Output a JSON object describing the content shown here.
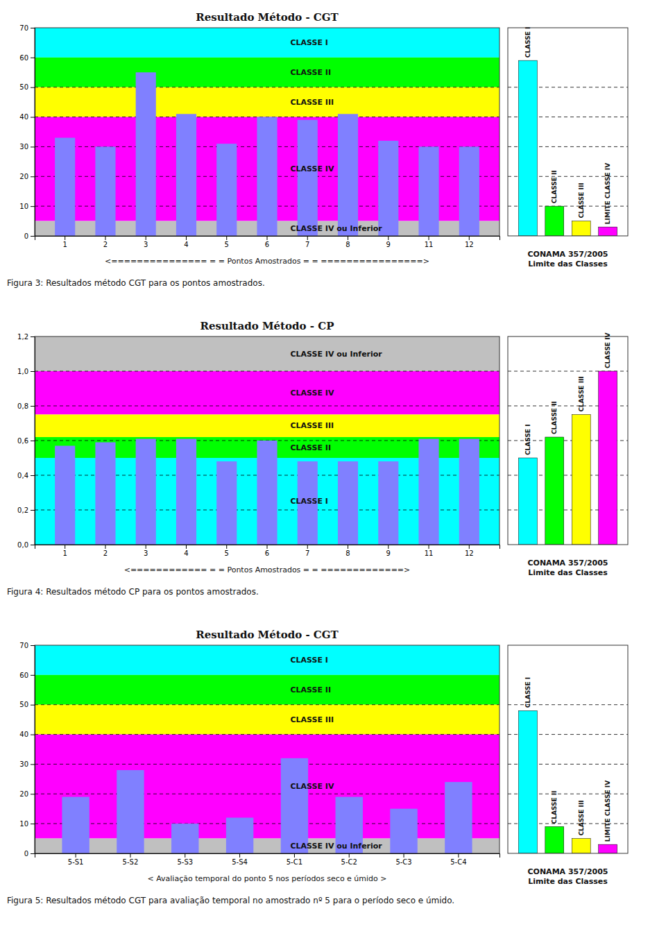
{
  "chart_data": [
    {
      "type": "bar",
      "title": "Resultado Método - CGT",
      "categories": [
        "1",
        "2",
        "3",
        "4",
        "5",
        "6",
        "7",
        "8",
        "9",
        "11",
        "12"
      ],
      "values": [
        33,
        30,
        55,
        41,
        31,
        40,
        39,
        41,
        32,
        30,
        30
      ],
      "color": "#8080FF",
      "ylim": [
        0,
        70
      ],
      "yticks": [
        0,
        10,
        20,
        30,
        40,
        50,
        60,
        70
      ],
      "xlabel": "<=============== = = Pontos Amostrados = = ================>",
      "caption": "Figura 3: Resultados método CGT para os pontos amostrados.",
      "bands": [
        {
          "label": "CLASSE I",
          "ymin": 60,
          "ymax": 70,
          "color": "#00FFFF"
        },
        {
          "label": "CLASSE II",
          "ymin": 50,
          "ymax": 60,
          "color": "#00FF00"
        },
        {
          "label": "CLASSE III",
          "ymin": 40,
          "ymax": 50,
          "color": "#FFFF00"
        },
        {
          "label": "CLASSE IV",
          "ymin": 5,
          "ymax": 40,
          "color": "#FF00FF"
        },
        {
          "label": "CLASSE IV ou Inferior",
          "ymin": 0,
          "ymax": 5,
          "color": "#C0C0C0"
        }
      ],
      "reference_lines": [
        50,
        40,
        30,
        20,
        10
      ],
      "legend_bars": [
        {
          "label": "CLASSE I",
          "value": 59,
          "color": "#00FFFF"
        },
        {
          "label": "CLASSE II",
          "value": 10,
          "color": "#00FF00"
        },
        {
          "label": "CLASSE III",
          "value": 5,
          "color": "#FFFF00"
        },
        {
          "label": "LIMITE CLASSE IV",
          "value": 3,
          "color": "#FF00FF"
        }
      ],
      "legend_title": "CONAMA 357/2005\nLimite das Classes"
    },
    {
      "type": "bar",
      "title": "Resultado Método - CP",
      "categories": [
        "1",
        "2",
        "3",
        "4",
        "5",
        "6",
        "7",
        "8",
        "9",
        "11",
        "12"
      ],
      "values": [
        0.57,
        0.59,
        0.61,
        0.61,
        0.48,
        0.6,
        0.48,
        0.48,
        0.48,
        0.61,
        0.61
      ],
      "color": "#8080FF",
      "ylim": [
        0.0,
        1.2
      ],
      "yticks": [
        {
          "value": 0.0,
          "label": "0,0"
        },
        {
          "value": 0.2,
          "label": "0,2"
        },
        {
          "value": 0.4,
          "label": "0,4"
        },
        {
          "value": 0.6,
          "label": "0,6"
        },
        {
          "value": 0.8,
          "label": "0,8"
        },
        {
          "value": 1.0,
          "label": "1,0"
        },
        {
          "value": 1.2,
          "label": "1,2"
        }
      ],
      "xlabel": "<============ = = Pontos Amostrados = = =============>",
      "caption": "Figura 4: Resultados método CP para os pontos amostrados.",
      "bands": [
        {
          "label": "CLASSE IV ou Inferior",
          "ymin": 1.0,
          "ymax": 1.2,
          "color": "#C0C0C0"
        },
        {
          "label": "CLASSE IV",
          "ymin": 0.75,
          "ymax": 1.0,
          "color": "#FF00FF"
        },
        {
          "label": "CLASSE III",
          "ymin": 0.62,
          "ymax": 0.75,
          "color": "#FFFF00"
        },
        {
          "label": "CLASSE II",
          "ymin": 0.5,
          "ymax": 0.62,
          "color": "#00FF00"
        },
        {
          "label": "CLASSE I",
          "ymin": 0.0,
          "ymax": 0.5,
          "color": "#00FFFF"
        }
      ],
      "reference_lines": [
        1.0,
        0.8,
        0.6,
        0.4,
        0.2
      ],
      "legend_bars": [
        {
          "label": "CLASSE I",
          "value": 0.5,
          "color": "#00FFFF"
        },
        {
          "label": "CLASSE II",
          "value": 0.62,
          "color": "#00FF00"
        },
        {
          "label": "CLASSE III",
          "value": 0.75,
          "color": "#FFFF00"
        },
        {
          "label": "CLASSE IV",
          "value": 1.0,
          "color": "#FF00FF"
        }
      ],
      "legend_title": "CONAMA 357/2005\nLimite das Classes"
    },
    {
      "type": "bar",
      "title": "Resultado Método - CGT",
      "categories": [
        "5-S1",
        "5-S2",
        "5-S3",
        "5-S4",
        "5-C1",
        "5-C2",
        "5-C3",
        "5-C4"
      ],
      "values": [
        19,
        28,
        10,
        12,
        32,
        19,
        15,
        24
      ],
      "color": "#8080FF",
      "ylim": [
        0,
        70
      ],
      "yticks": [
        0,
        10,
        20,
        30,
        40,
        50,
        60,
        70
      ],
      "xlabel": "< Avaliação temporal do ponto 5 nos períodos seco e úmido >",
      "caption": "Figura 5: Resultados método CGT para avaliação temporal no amostrado nº 5 para o período seco e úmido.",
      "bands": [
        {
          "label": "CLASSE I",
          "ymin": 60,
          "ymax": 70,
          "color": "#00FFFF"
        },
        {
          "label": "CLASSE II",
          "ymin": 50,
          "ymax": 60,
          "color": "#00FF00"
        },
        {
          "label": "CLASSE III",
          "ymin": 40,
          "ymax": 50,
          "color": "#FFFF00"
        },
        {
          "label": "CLASSE IV",
          "ymin": 5,
          "ymax": 40,
          "color": "#FF00FF"
        },
        {
          "label": "CLASSE IV ou Inferior",
          "ymin": 0,
          "ymax": 5,
          "color": "#C0C0C0"
        }
      ],
      "reference_lines": [
        50,
        40,
        30,
        20,
        10
      ],
      "legend_bars": [
        {
          "label": "CLASSE I",
          "value": 48,
          "color": "#00FFFF"
        },
        {
          "label": "CLASSE II",
          "value": 9,
          "color": "#00FF00"
        },
        {
          "label": "CLASSE III",
          "value": 5,
          "color": "#FFFF00"
        },
        {
          "label": "LIMITE CLASSE IV",
          "value": 3,
          "color": "#FF00FF"
        }
      ],
      "legend_title": "CONAMA 357/2005\nLimite das Classes"
    }
  ]
}
